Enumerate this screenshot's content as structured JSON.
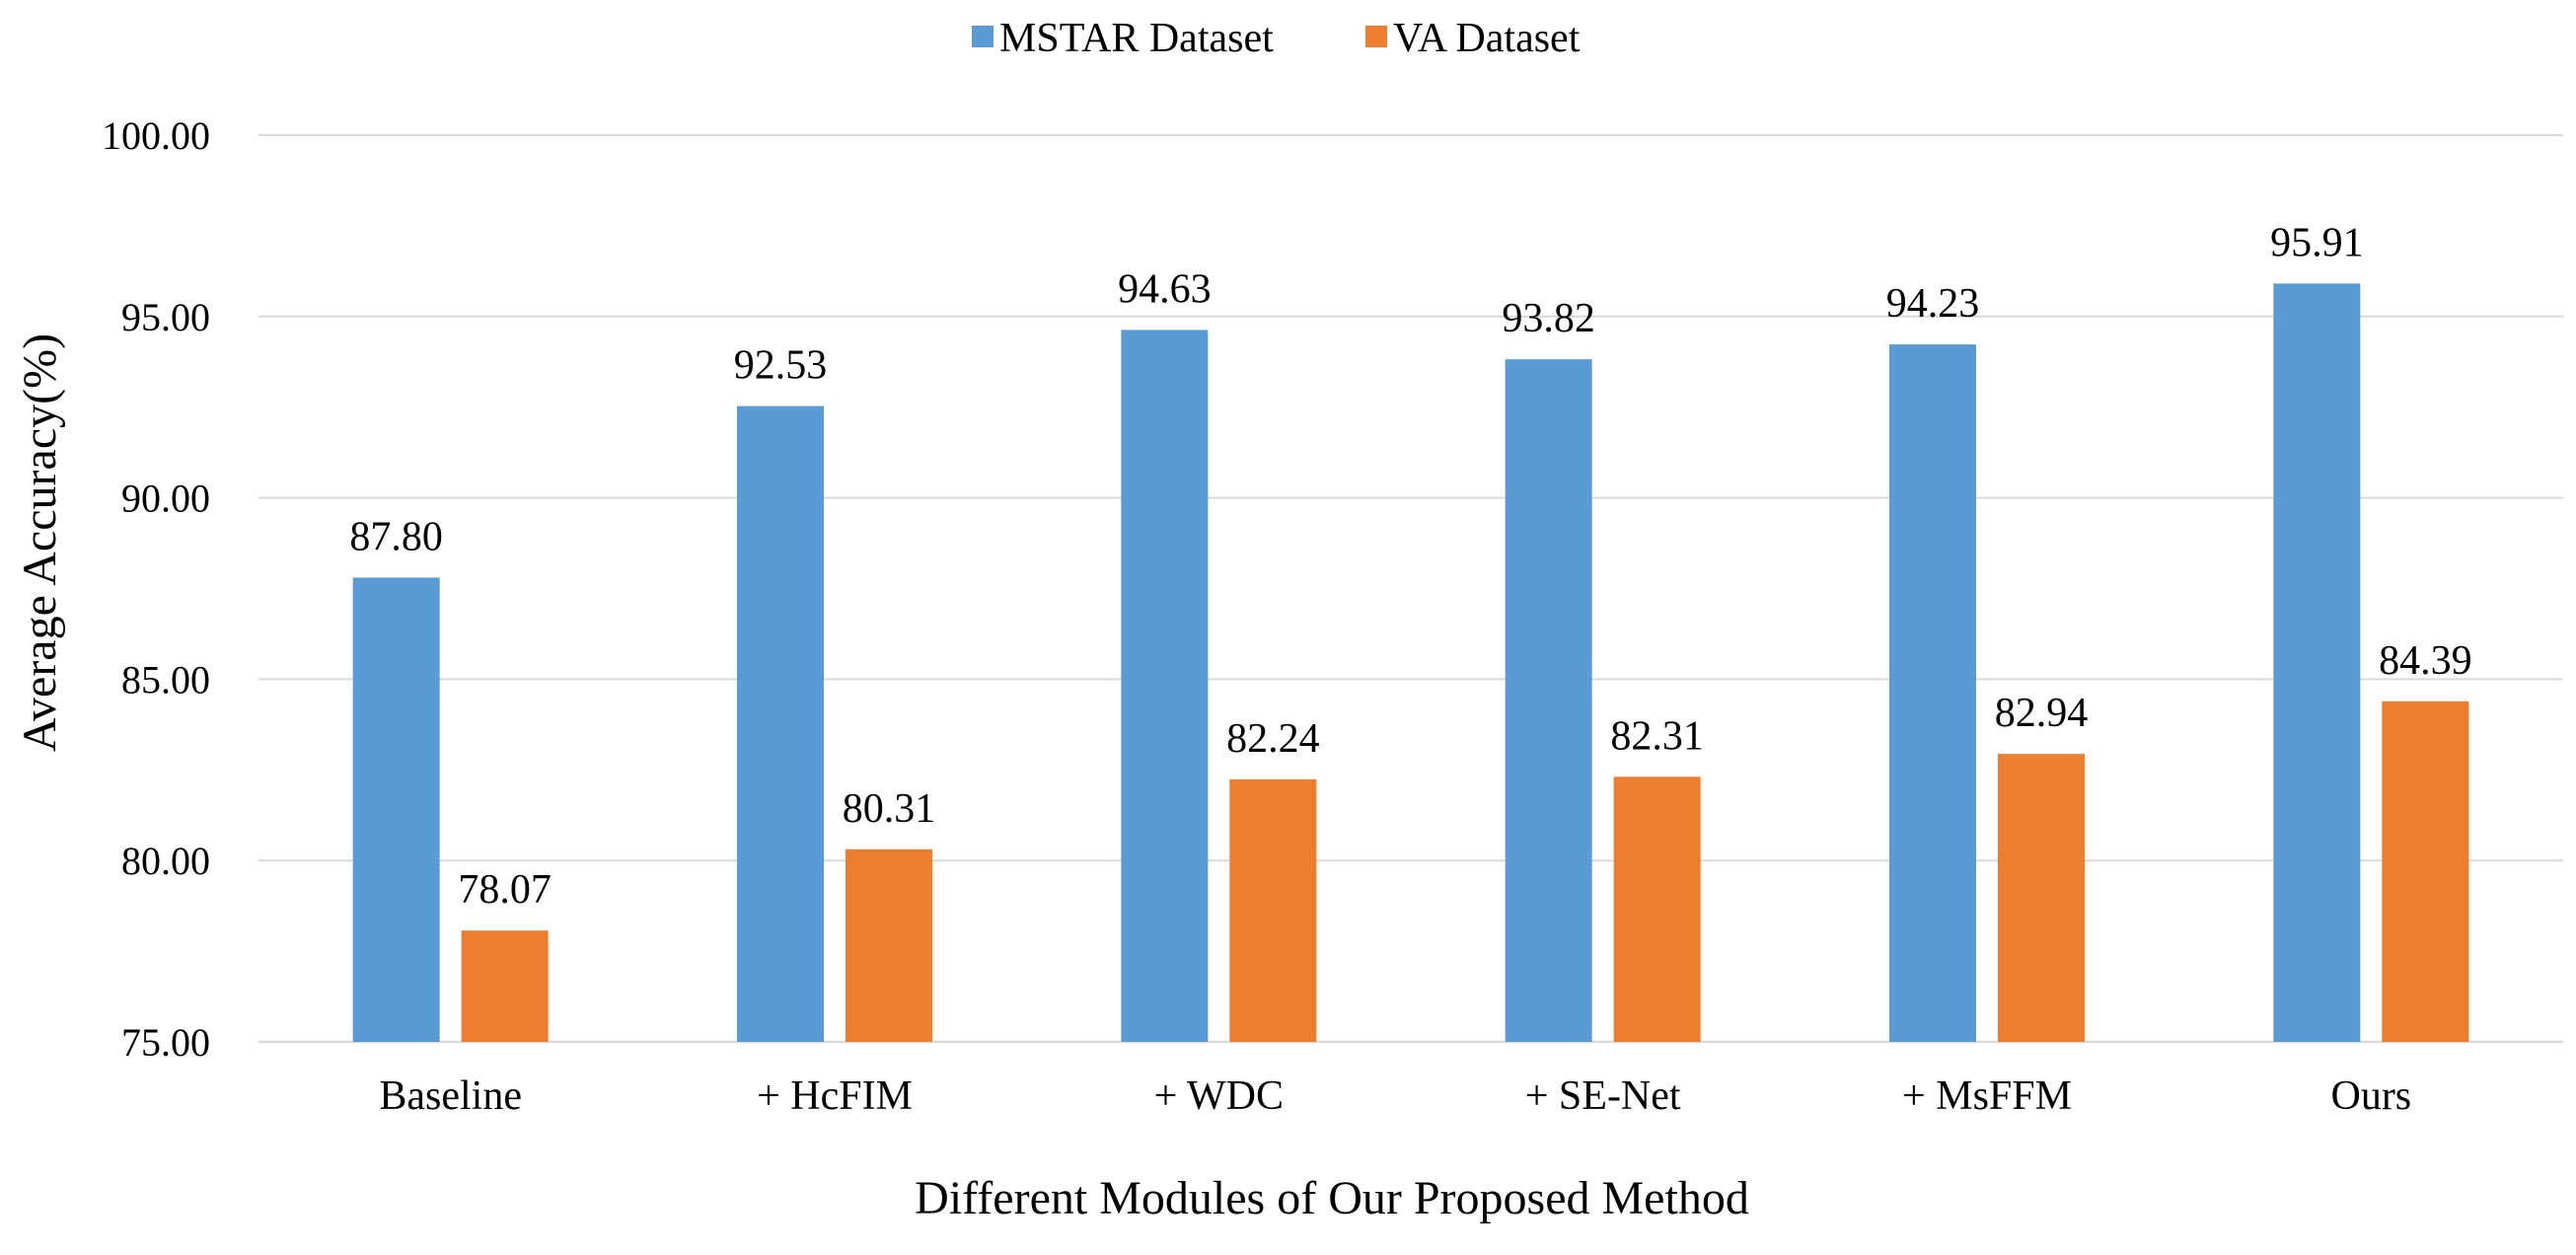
{
  "chart_data": {
    "type": "bar",
    "categories": [
      "Baseline",
      "+ HcFIM",
      "+ WDC",
      "+ SE-Net",
      "+ MsFFM",
      "Ours"
    ],
    "series": [
      {
        "name": "MSTAR Dataset",
        "color": "#5b9bd5",
        "values": [
          87.8,
          92.53,
          94.63,
          93.82,
          94.23,
          95.91
        ]
      },
      {
        "name": "VA Dataset",
        "color": "#ed7d31",
        "values": [
          78.07,
          80.31,
          82.24,
          82.31,
          82.94,
          84.39
        ]
      }
    ],
    "value_labels": [
      [
        "87.80",
        "92.53",
        "94.63",
        "93.82",
        "94.23",
        "95.91"
      ],
      [
        "78.07",
        "80.31",
        "82.24",
        "82.31",
        "82.94",
        "84.39"
      ]
    ],
    "y_ticks": [
      "75.00",
      "80.00",
      "85.00",
      "90.00",
      "95.00",
      "100.00"
    ],
    "ylim": [
      75,
      100
    ],
    "xlabel": "Different Modules of Our Proposed Method",
    "ylabel": "Average Accuracy(%)",
    "title": "",
    "grid": true,
    "legend_position": "top-center"
  }
}
